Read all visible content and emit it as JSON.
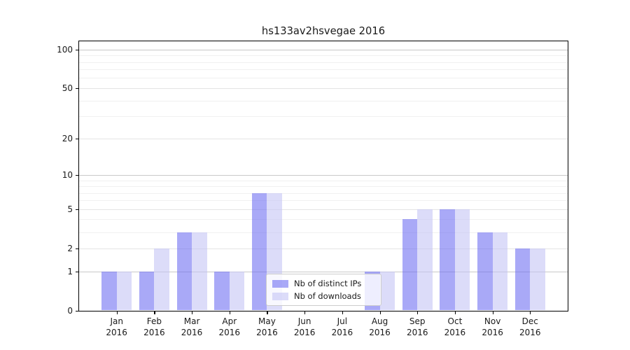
{
  "chart_data": {
    "type": "bar",
    "title": "hs133av2hsvegae 2016",
    "categories": [
      "Jan 2016",
      "Feb 2016",
      "Mar 2016",
      "Apr 2016",
      "May 2016",
      "Jun 2016",
      "Jul 2016",
      "Aug 2016",
      "Sep 2016",
      "Oct 2016",
      "Nov 2016",
      "Dec 2016"
    ],
    "months": [
      "Jan",
      "Feb",
      "Mar",
      "Apr",
      "May",
      "Jun",
      "Jul",
      "Aug",
      "Sep",
      "Oct",
      "Nov",
      "Dec"
    ],
    "year": "2016",
    "series": [
      {
        "name": "Nb of distinct IPs",
        "color": "#a9a9f7",
        "fill": "rgba(112,112,242,0.6)",
        "values": [
          1,
          1,
          3,
          1,
          7,
          0,
          0,
          1,
          4,
          5,
          3,
          2
        ]
      },
      {
        "name": "Nb of downloads",
        "color": "#dcdcf9",
        "fill": "rgba(197,197,245,0.6)",
        "values": [
          1,
          2,
          3,
          1,
          7,
          0,
          0,
          1,
          5,
          5,
          3,
          2
        ]
      }
    ],
    "yscale": "log1p",
    "y_major_ticks": [
      0,
      1,
      2,
      5,
      10,
      20,
      50,
      100
    ],
    "y_minor_gridlines": [
      3,
      4,
      6,
      7,
      8,
      9,
      30,
      40,
      60,
      70,
      80,
      90
    ],
    "ylim": [
      0,
      117
    ],
    "grid": true,
    "legend_position": "lower center"
  },
  "colors": {
    "grid_decade": "#c8c8c8",
    "grid_labeled_minor": "#e4e4e4",
    "grid_minor": "#f0f0f0",
    "axis": "#000000",
    "text": "#1a1a1a",
    "legend_border": "#cccccc"
  }
}
